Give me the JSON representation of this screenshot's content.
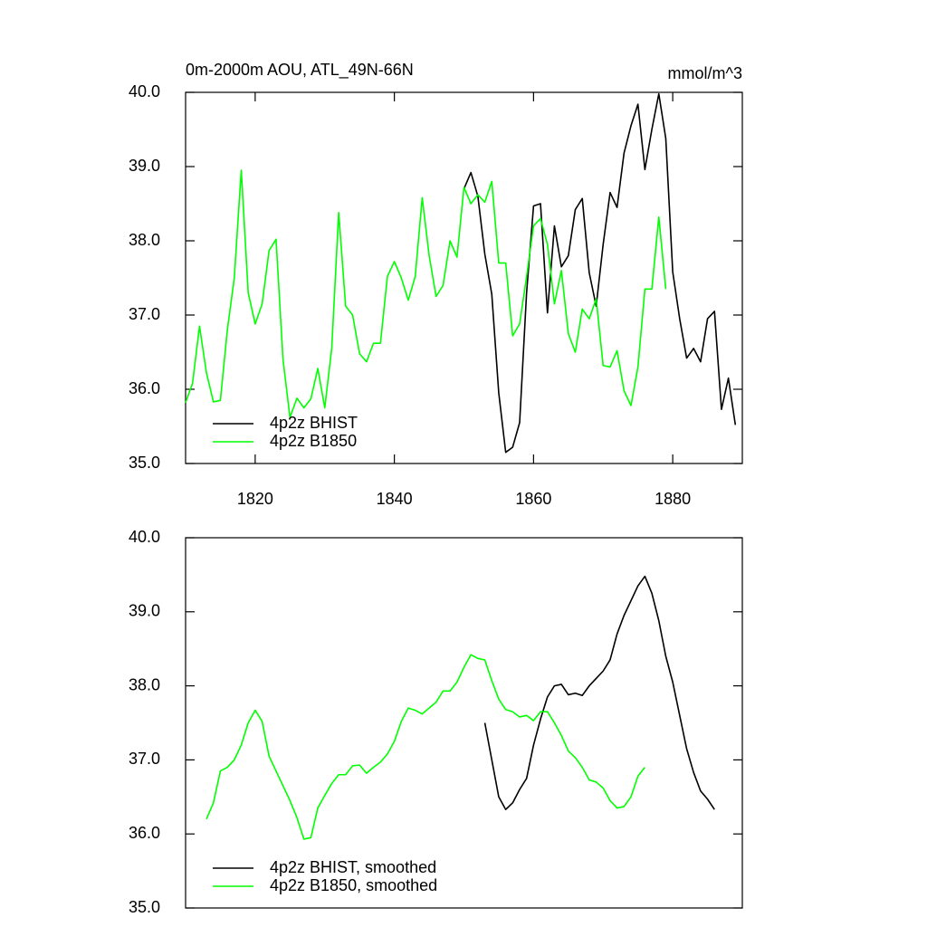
{
  "chart_data": [
    {
      "type": "line",
      "title": "0m-2000m AOU, ATL_49N-66N",
      "units": "mmol/m^3",
      "x": [
        1810,
        1811,
        1812,
        1813,
        1814,
        1815,
        1816,
        1817,
        1818,
        1819,
        1820,
        1821,
        1822,
        1823,
        1824,
        1825,
        1826,
        1827,
        1828,
        1829,
        1830,
        1831,
        1832,
        1833,
        1834,
        1835,
        1836,
        1837,
        1838,
        1839,
        1840,
        1841,
        1842,
        1843,
        1844,
        1845,
        1846,
        1847,
        1848,
        1849,
        1850,
        1851,
        1852,
        1853,
        1854,
        1855,
        1856,
        1857,
        1858,
        1859,
        1860,
        1861,
        1862,
        1863,
        1864,
        1865,
        1866,
        1867,
        1868,
        1869,
        1870,
        1871,
        1872,
        1873,
        1874,
        1875,
        1876,
        1877,
        1878,
        1879,
        1880,
        1881,
        1882,
        1883,
        1884,
        1885,
        1886,
        1887,
        1888,
        1889
      ],
      "series": [
        {
          "name": "4p2z BHIST",
          "color": "#000000",
          "values": [
            null,
            null,
            null,
            null,
            null,
            null,
            null,
            null,
            null,
            null,
            null,
            null,
            null,
            null,
            null,
            null,
            null,
            null,
            null,
            null,
            null,
            null,
            null,
            null,
            null,
            null,
            null,
            null,
            null,
            null,
            null,
            null,
            null,
            null,
            null,
            null,
            null,
            null,
            null,
            null,
            38.7,
            38.92,
            38.6,
            37.82,
            37.28,
            35.95,
            35.15,
            35.22,
            35.55,
            37.3,
            38.47,
            38.5,
            37.03,
            38.2,
            37.65,
            37.8,
            38.42,
            38.57,
            37.57,
            37.12,
            37.95,
            38.65,
            38.45,
            39.18,
            39.55,
            39.84,
            38.96,
            39.5,
            39.98,
            39.38,
            37.58,
            36.95,
            36.42,
            36.55,
            36.37,
            36.95,
            37.05,
            35.73,
            36.15,
            35.52
          ]
        },
        {
          "name": "4p2z B1850",
          "color": "#00ff00",
          "values": [
            35.82,
            36.08,
            36.85,
            36.22,
            35.83,
            35.85,
            36.8,
            37.5,
            38.95,
            37.3,
            36.88,
            37.15,
            37.87,
            38.02,
            36.4,
            35.62,
            35.88,
            35.75,
            35.87,
            36.28,
            35.75,
            36.55,
            38.38,
            37.12,
            37.0,
            36.48,
            36.37,
            36.62,
            36.62,
            37.52,
            37.72,
            37.5,
            37.2,
            37.52,
            38.58,
            37.8,
            37.25,
            37.4,
            38.0,
            37.78,
            38.72,
            38.5,
            38.62,
            38.52,
            38.8,
            37.7,
            37.7,
            36.72,
            36.88,
            37.52,
            38.2,
            38.3,
            37.95,
            37.15,
            37.6,
            36.75,
            36.5,
            37.08,
            36.95,
            37.22,
            36.32,
            36.3,
            36.52,
            35.98,
            35.78,
            36.3,
            37.35,
            37.35,
            38.32,
            37.35,
            null,
            null,
            null,
            null,
            null,
            null,
            null,
            null,
            null,
            null
          ]
        }
      ],
      "xlim": [
        1810,
        1890
      ],
      "xticks": [
        1820,
        1840,
        1860,
        1880
      ],
      "ylim": [
        35,
        40
      ],
      "yticks": [
        {
          "value": 35,
          "label": "35.0"
        },
        {
          "value": 36,
          "label": "36.0"
        },
        {
          "value": 37,
          "label": "37.0"
        },
        {
          "value": 38,
          "label": "38.0"
        },
        {
          "value": 39,
          "label": "39.0"
        },
        {
          "value": 40,
          "label": "40.0"
        }
      ],
      "grid": false,
      "legend": "lower left"
    },
    {
      "type": "line",
      "x": [
        1810,
        1811,
        1812,
        1813,
        1814,
        1815,
        1816,
        1817,
        1818,
        1819,
        1820,
        1821,
        1822,
        1823,
        1824,
        1825,
        1826,
        1827,
        1828,
        1829,
        1830,
        1831,
        1832,
        1833,
        1834,
        1835,
        1836,
        1837,
        1838,
        1839,
        1840,
        1841,
        1842,
        1843,
        1844,
        1845,
        1846,
        1847,
        1848,
        1849,
        1850,
        1851,
        1852,
        1853,
        1854,
        1855,
        1856,
        1857,
        1858,
        1859,
        1860,
        1861,
        1862,
        1863,
        1864,
        1865,
        1866,
        1867,
        1868,
        1869,
        1870,
        1871,
        1872,
        1873,
        1874,
        1875,
        1876,
        1877,
        1878,
        1879,
        1880,
        1881,
        1882,
        1883,
        1884,
        1885,
        1886,
        1887,
        1888,
        1889
      ],
      "series": [
        {
          "name": "4p2z BHIST, smoothed",
          "color": "#000000",
          "values": [
            null,
            null,
            null,
            null,
            null,
            null,
            null,
            null,
            null,
            null,
            null,
            null,
            null,
            null,
            null,
            null,
            null,
            null,
            null,
            null,
            null,
            null,
            null,
            null,
            null,
            null,
            null,
            null,
            null,
            null,
            null,
            null,
            null,
            null,
            null,
            null,
            null,
            null,
            null,
            null,
            null,
            null,
            null,
            37.5,
            37.0,
            36.5,
            36.33,
            36.42,
            36.6,
            36.75,
            37.2,
            37.55,
            37.85,
            38.0,
            38.02,
            37.88,
            37.9,
            37.87,
            38.0,
            38.1,
            38.2,
            38.35,
            38.7,
            38.95,
            39.15,
            39.35,
            39.48,
            39.25,
            38.88,
            38.4,
            38.05,
            37.6,
            37.15,
            36.83,
            36.58,
            36.47,
            36.33,
            null,
            null,
            null
          ]
        },
        {
          "name": "4p2z B1850, smoothed",
          "color": "#00ff00",
          "values": [
            null,
            null,
            null,
            36.2,
            36.42,
            36.85,
            36.9,
            37.0,
            37.2,
            37.5,
            37.67,
            37.52,
            37.05,
            36.85,
            36.65,
            36.45,
            36.22,
            35.93,
            35.95,
            36.35,
            36.52,
            36.68,
            36.8,
            36.8,
            36.92,
            36.93,
            36.82,
            36.9,
            36.97,
            37.08,
            37.25,
            37.52,
            37.7,
            37.67,
            37.62,
            37.7,
            37.78,
            37.93,
            37.93,
            38.05,
            38.25,
            38.42,
            38.37,
            38.35,
            38.07,
            37.82,
            37.68,
            37.65,
            37.58,
            37.6,
            37.53,
            37.65,
            37.65,
            37.5,
            37.33,
            37.12,
            37.03,
            36.9,
            36.73,
            36.7,
            36.62,
            36.45,
            36.35,
            36.37,
            36.5,
            36.78,
            36.9,
            null,
            null,
            null,
            null,
            null,
            null,
            null,
            null,
            null,
            null,
            null,
            null,
            null
          ]
        }
      ],
      "xlim": [
        1810,
        1890
      ],
      "ylim": [
        35,
        40
      ],
      "yticks": [
        {
          "value": 35,
          "label": "35.0"
        },
        {
          "value": 36,
          "label": "36.0"
        },
        {
          "value": 37,
          "label": "37.0"
        },
        {
          "value": 38,
          "label": "38.0"
        },
        {
          "value": 39,
          "label": "39.0"
        },
        {
          "value": 40,
          "label": "40.0"
        }
      ],
      "grid": false,
      "legend": "lower left"
    }
  ]
}
